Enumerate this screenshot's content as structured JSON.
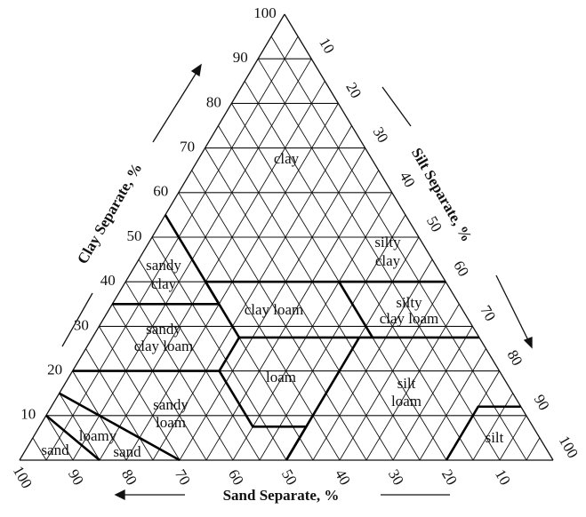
{
  "diagram": {
    "type": "ternary-soil-texture-triangle",
    "axes": {
      "clay": {
        "title": "Clay Separate, %",
        "ticks": [
          "10",
          "20",
          "30",
          "40",
          "50",
          "60",
          "70",
          "80",
          "90",
          "100"
        ]
      },
      "silt": {
        "title": "Silt Separate, %",
        "ticks": [
          "10",
          "20",
          "30",
          "40",
          "50",
          "60",
          "70",
          "80",
          "90",
          "100"
        ]
      },
      "sand": {
        "title": "Sand Separate, %",
        "ticks": [
          "100",
          "90",
          "80",
          "70",
          "60",
          "50",
          "40",
          "30",
          "20",
          "10"
        ]
      }
    },
    "grid_step_percent": 5,
    "labels": {
      "clay": "clay",
      "silty_clay": [
        "silty",
        "clay"
      ],
      "sandy_clay": [
        "sandy",
        "clay"
      ],
      "clay_loam": "clay loam",
      "silty_clay_loam": [
        "silty",
        "clay loam"
      ],
      "sandy_clay_loam": [
        "sandy",
        "clay loam"
      ],
      "loam": "loam",
      "silt_loam": [
        "silt",
        "loam"
      ],
      "sandy_loam": [
        "sandy",
        "loam"
      ],
      "loamy_sand": [
        "loamy",
        "sand"
      ],
      "sand": "sand",
      "silt": "silt"
    },
    "boundaries_sand_silt_clay": [
      [
        [
          85,
          15,
          0
        ],
        [
          90,
          0,
          10
        ]
      ],
      [
        [
          70,
          30,
          0
        ],
        [
          85,
          0,
          15
        ]
      ],
      [
        [
          80,
          0,
          20
        ],
        [
          52.5,
          27.5,
          20
        ],
        [
          52.5,
          40,
          7.5
        ],
        [
          42.5,
          50,
          7.5
        ],
        [
          50,
          50,
          0
        ]
      ],
      [
        [
          52.5,
          27.5,
          20
        ],
        [
          45,
          27.5,
          27.5
        ],
        [
          20,
          52.5,
          27.5
        ],
        [
          0,
          72.5,
          27.5
        ]
      ],
      [
        [
          22.5,
          50,
          27.5
        ],
        [
          50,
          50,
          0
        ]
      ],
      [
        [
          20,
          80,
          0
        ],
        [
          8,
          80,
          12
        ],
        [
          0,
          88,
          12
        ]
      ],
      [
        [
          65,
          0,
          35
        ],
        [
          45,
          20,
          35
        ],
        [
          45,
          27.5,
          27.5
        ]
      ],
      [
        [
          45,
          20,
          35
        ],
        [
          45,
          0,
          55
        ]
      ],
      [
        [
          45,
          15,
          40
        ],
        [
          0,
          60,
          40
        ]
      ],
      [
        [
          45,
          20,
          35
        ],
        [
          45,
          15,
          40
        ]
      ],
      [
        [
          20,
          40,
          40
        ],
        [
          20,
          52.5,
          27.5
        ]
      ],
      [
        [
          20,
          40,
          40
        ],
        [
          0,
          60,
          40
        ]
      ]
    ]
  }
}
